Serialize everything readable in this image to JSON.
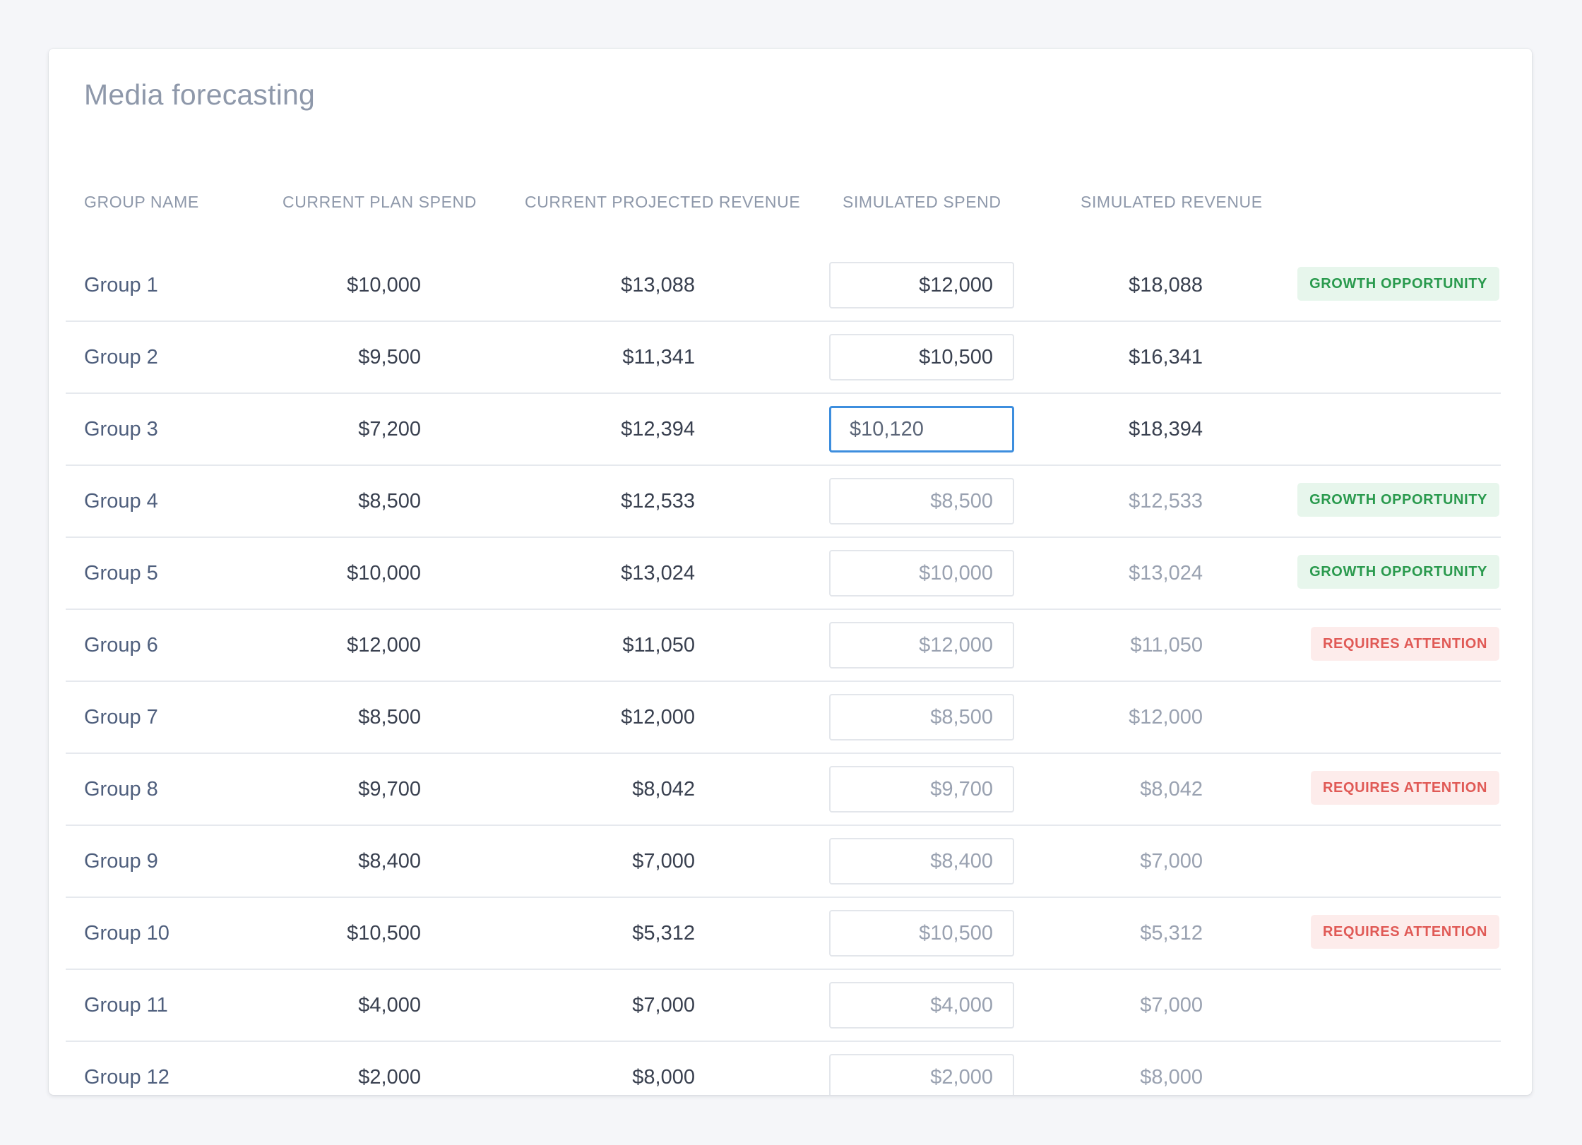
{
  "title": "Media forecasting",
  "columns": {
    "group_name": "GROUP NAME",
    "current_plan_spend": "CURRENT PLAN SPEND",
    "current_projected_revenue": "CURRENT PROJECTED REVENUE",
    "simulated_spend": "SIMULATED SPEND",
    "simulated_revenue": "SIMULATED REVENUE"
  },
  "colors": {
    "growth_badge_bg": "#e7f6ec",
    "growth_badge_text": "#2a9a4e",
    "attention_badge_bg": "#fdeceb",
    "attention_badge_text": "#e05a56",
    "focus_border": "#3d8ede"
  },
  "rows": [
    {
      "name": "Group 1",
      "plan": "$10,000",
      "proj": "$13,088",
      "sim_spend": "$12,000",
      "sim_rev": "$18,088",
      "badge": "GROWTH OPPORTUNITY",
      "badge_type": "growth",
      "edited": true,
      "focused": false
    },
    {
      "name": "Group 2",
      "plan": "$9,500",
      "proj": "$11,341",
      "sim_spend": "$10,500",
      "sim_rev": "$16,341",
      "badge": "",
      "badge_type": "",
      "edited": true,
      "focused": false
    },
    {
      "name": "Group 3",
      "plan": "$7,200",
      "proj": "$12,394",
      "sim_spend": "$10,120",
      "sim_rev": "$18,394",
      "badge": "",
      "badge_type": "",
      "edited": true,
      "focused": true
    },
    {
      "name": "Group 4",
      "plan": "$8,500",
      "proj": "$12,533",
      "sim_spend": "$8,500",
      "sim_rev": "$12,533",
      "badge": "GROWTH OPPORTUNITY",
      "badge_type": "growth",
      "edited": false,
      "focused": false
    },
    {
      "name": "Group 5",
      "plan": "$10,000",
      "proj": "$13,024",
      "sim_spend": "$10,000",
      "sim_rev": "$13,024",
      "badge": "GROWTH OPPORTUNITY",
      "badge_type": "growth",
      "edited": false,
      "focused": false
    },
    {
      "name": "Group 6",
      "plan": "$12,000",
      "proj": "$11,050",
      "sim_spend": "$12,000",
      "sim_rev": "$11,050",
      "badge": "REQUIRES ATTENTION",
      "badge_type": "attention",
      "edited": false,
      "focused": false
    },
    {
      "name": "Group 7",
      "plan": "$8,500",
      "proj": "$12,000",
      "sim_spend": "$8,500",
      "sim_rev": "$12,000",
      "badge": "",
      "badge_type": "",
      "edited": false,
      "focused": false
    },
    {
      "name": "Group 8",
      "plan": "$9,700",
      "proj": "$8,042",
      "sim_spend": "$9,700",
      "sim_rev": "$8,042",
      "badge": "REQUIRES ATTENTION",
      "badge_type": "attention",
      "edited": false,
      "focused": false
    },
    {
      "name": "Group 9",
      "plan": "$8,400",
      "proj": "$7,000",
      "sim_spend": "$8,400",
      "sim_rev": "$7,000",
      "badge": "",
      "badge_type": "",
      "edited": false,
      "focused": false
    },
    {
      "name": "Group 10",
      "plan": "$10,500",
      "proj": "$5,312",
      "sim_spend": "$10,500",
      "sim_rev": "$5,312",
      "badge": "REQUIRES ATTENTION",
      "badge_type": "attention",
      "edited": false,
      "focused": false
    },
    {
      "name": "Group 11",
      "plan": "$4,000",
      "proj": "$7,000",
      "sim_spend": "$4,000",
      "sim_rev": "$7,000",
      "badge": "",
      "badge_type": "",
      "edited": false,
      "focused": false
    },
    {
      "name": "Group 12",
      "plan": "$2,000",
      "proj": "$8,000",
      "sim_spend": "$2,000",
      "sim_rev": "$8,000",
      "badge": "",
      "badge_type": "",
      "edited": false,
      "focused": false
    }
  ]
}
